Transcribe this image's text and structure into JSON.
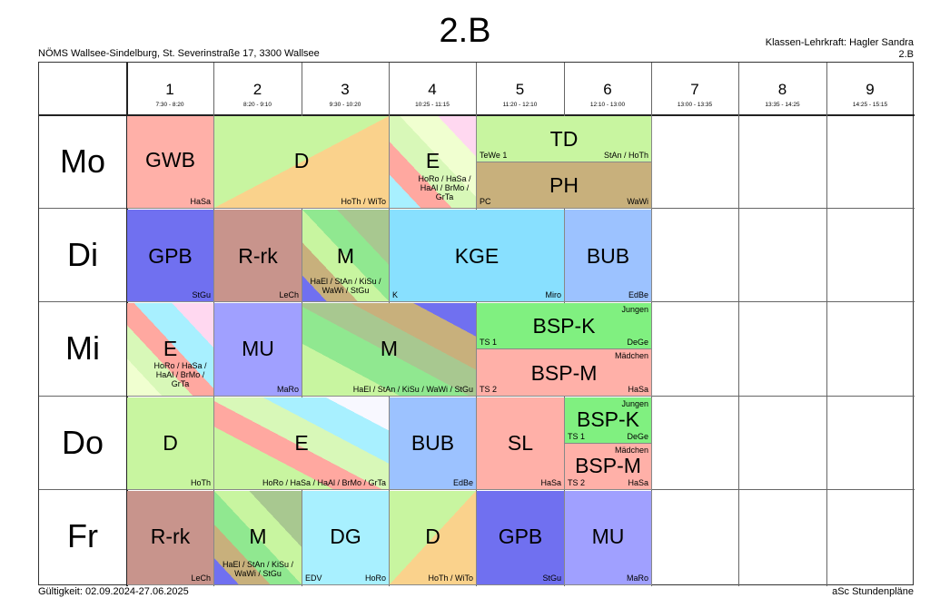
{
  "header": {
    "title": "2.B",
    "school": "NÖMS Wallsee-Sindelburg, St. Severinstraße 17, 3300 Wallsee",
    "teacher_line": "Klassen-Lehrkraft: Hagler Sandra",
    "class_line": "2.B"
  },
  "footer": {
    "validity": "Gültigkeit: 02.09.2024-27.06.2025",
    "brand": "aSc Stundenpläne"
  },
  "periods": [
    {
      "num": "1",
      "time": "7:30 - 8:20"
    },
    {
      "num": "2",
      "time": "8:20 - 9:10"
    },
    {
      "num": "3",
      "time": "9:30 - 10:20"
    },
    {
      "num": "4",
      "time": "10:25 - 11:15"
    },
    {
      "num": "5",
      "time": "11:20 - 12:10"
    },
    {
      "num": "6",
      "time": "12:10 - 13:00"
    },
    {
      "num": "7",
      "time": "13:00 - 13:35"
    },
    {
      "num": "8",
      "time": "13:35 - 14:25"
    },
    {
      "num": "9",
      "time": "14:25 - 15:15"
    }
  ],
  "days": [
    "Mo",
    "Di",
    "Mi",
    "Do",
    "Fr"
  ],
  "lessons": {
    "mo_gwb": {
      "subject": "GWB",
      "teacher": "HaSa"
    },
    "mo_d": {
      "subject": "D",
      "teacher": "HoTh / WiTo"
    },
    "mo_e": {
      "subject": "E",
      "teacher": "HoRo / HaSa / HaAl / BrMo / GrTa"
    },
    "mo_td": {
      "subject": "TD",
      "room": "TeWe 1",
      "teacher": "StAn / HoTh"
    },
    "mo_ph": {
      "subject": "PH",
      "room": "PC",
      "teacher": "WaWi"
    },
    "di_gpb": {
      "subject": "GPB",
      "teacher": "StGu"
    },
    "di_rrk": {
      "subject": "R-rk",
      "teacher": "LeCh"
    },
    "di_m": {
      "subject": "M",
      "teacher": "HaEl / StAn / KiSu / WaWi / StGu"
    },
    "di_kge": {
      "subject": "KGE",
      "room": "K",
      "teacher": "Miro"
    },
    "di_bub": {
      "subject": "BUB",
      "teacher": "EdBe"
    },
    "mi_e": {
      "subject": "E",
      "teacher": "HoRo / HaSa / HaAl / BrMo / GrTa"
    },
    "mi_mu": {
      "subject": "MU",
      "teacher": "MaRo"
    },
    "mi_m": {
      "subject": "M",
      "teacher": "HaEl / StAn / KiSu / WaWi / StGu"
    },
    "mi_bspk": {
      "subject": "BSP-K",
      "group": "Jungen",
      "room": "TS 1",
      "teacher": "DeGe"
    },
    "mi_bspm": {
      "subject": "BSP-M",
      "group": "Mädchen",
      "room": "TS 2",
      "teacher": "HaSa"
    },
    "do_d": {
      "subject": "D",
      "teacher": "HoTh"
    },
    "do_e": {
      "subject": "E",
      "teacher": "HoRo / HaSa / HaAl / BrMo / GrTa"
    },
    "do_bub": {
      "subject": "BUB",
      "teacher": "EdBe"
    },
    "do_sl": {
      "subject": "SL",
      "teacher": "HaSa"
    },
    "do_bspk": {
      "subject": "BSP-K",
      "group": "Jungen",
      "room": "TS 1",
      "teacher": "DeGe"
    },
    "do_bspm": {
      "subject": "BSP-M",
      "group": "Mädchen",
      "room": "TS 2",
      "teacher": "HaSa"
    },
    "fr_rrk": {
      "subject": "R-rk",
      "teacher": "LeCh"
    },
    "fr_m": {
      "subject": "M",
      "teacher": "HaEl / StAn / KiSu / WaWi / StGu"
    },
    "fr_dg": {
      "subject": "DG",
      "room": "EDV",
      "teacher": "HoRo"
    },
    "fr_d": {
      "subject": "D",
      "teacher": "HoTh / WiTo"
    },
    "fr_gpb": {
      "subject": "GPB",
      "teacher": "StGu"
    },
    "fr_mu": {
      "subject": "MU",
      "teacher": "MaRo"
    }
  },
  "colors": {
    "salmon": "#ffb0a8",
    "green_light": "#c8f5a0",
    "orange_light": "#fad28c",
    "blue_dark": "#7070f0",
    "rosy_brown": "#c8948c",
    "sky": "#88e0ff",
    "cornflower": "#9cc2ff",
    "lavender": "#a0a0ff",
    "bright_green": "#80f080",
    "khaki": "#c8b07c",
    "cyan_light": "#a8f0ff"
  }
}
